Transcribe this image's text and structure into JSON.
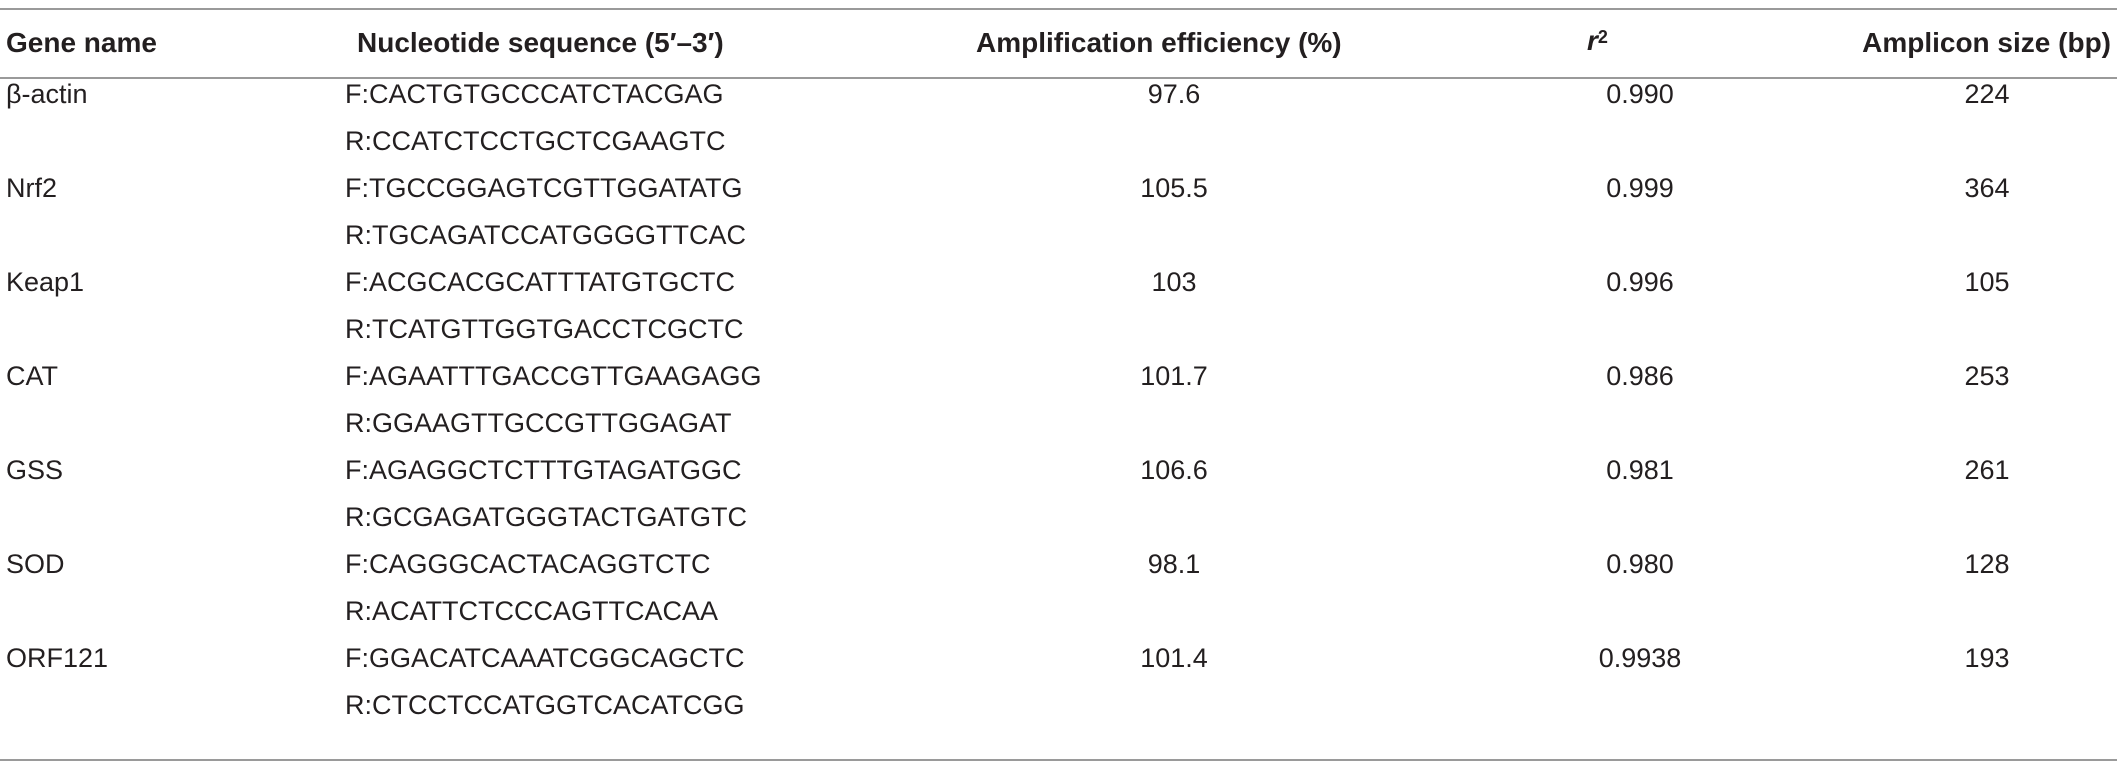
{
  "table": {
    "headers": {
      "gene": "Gene name",
      "sequence": "Nucleotide sequence (5′–3′)",
      "efficiency": "Amplification efficiency (%)",
      "r2_base": "r",
      "r2_sup": "2",
      "amplicon": "Amplicon size (bp)"
    },
    "rows": [
      {
        "gene": "β-actin",
        "forward": "F:CACTGTGCCCATCTACGAG",
        "reverse": "R:CCATCTCCTGCTCGAAGTC",
        "efficiency": "97.6",
        "r2": "0.990",
        "amplicon": "224"
      },
      {
        "gene": "Nrf2",
        "forward": "F:TGCCGGAGTCGTTGGATATG",
        "reverse": "R:TGCAGATCCATGGGGTTCAC",
        "efficiency": "105.5",
        "r2": "0.999",
        "amplicon": "364"
      },
      {
        "gene": "Keap1",
        "forward": "F:ACGCACGCATTTATGTGCTC",
        "reverse": "R:TCATGTTGGTGACCTCGCTC",
        "efficiency": "103",
        "r2": "0.996",
        "amplicon": "105"
      },
      {
        "gene": "CAT",
        "forward": "F:AGAATTTGACCGTTGAAGAGG",
        "reverse": "R:GGAAGTTGCCGTTGGAGAT",
        "efficiency": "101.7",
        "r2": "0.986",
        "amplicon": "253"
      },
      {
        "gene": "GSS",
        "forward": "F:AGAGGCTCTTTGTAGATGGC",
        "reverse": "R:GCGAGATGGGTACTGATGTC",
        "efficiency": "106.6",
        "r2": "0.981",
        "amplicon": "261"
      },
      {
        "gene": "SOD",
        "forward": "F:CAGGGCACTACAGGTCTC",
        "reverse": "R:ACATTCTCCCAGTTCACAA",
        "efficiency": "98.1",
        "r2": "0.980",
        "amplicon": "128"
      },
      {
        "gene": "ORF121",
        "forward": "F:GGACATCAAATCGGCAGCTC",
        "reverse": "R:CTCCTCCATGGTCACATCGG",
        "efficiency": "101.4",
        "r2": "0.9938",
        "amplicon": "193"
      }
    ]
  }
}
